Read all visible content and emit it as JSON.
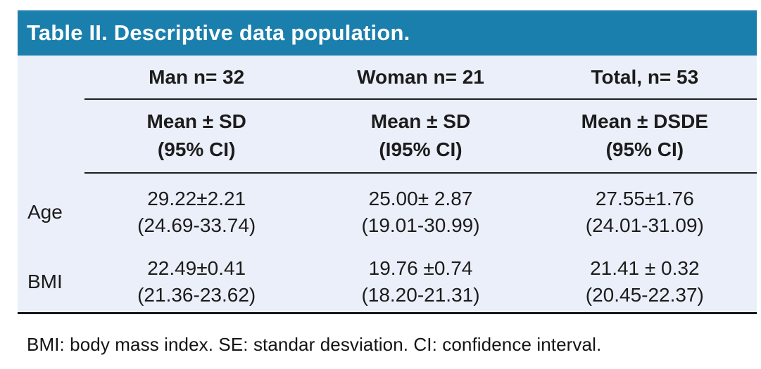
{
  "table": {
    "title": "Table II. Descriptive data population.",
    "columns": [
      {
        "group": "Man n= 32",
        "sub_line1": "Mean ± SD",
        "sub_line2": "(95% CI)"
      },
      {
        "group": "Woman n= 21",
        "sub_line1": "Mean ± SD",
        "sub_line2": "(I95% CI)"
      },
      {
        "group": "Total, n= 53",
        "sub_line1": "Mean ± DSDE",
        "sub_line2": "(95% CI)"
      }
    ],
    "rows": [
      {
        "label": "Age",
        "cells": [
          {
            "value": "29.22±2.21",
            "ci": "(24.69-33.74)"
          },
          {
            "value": "25.00± 2.87",
            "ci": "(19.01-30.99)"
          },
          {
            "value": "27.55±1.76",
            "ci": "(24.01-31.09)"
          }
        ]
      },
      {
        "label": "BMI",
        "cells": [
          {
            "value": "22.49±0.41",
            "ci": "(21.36-23.62)"
          },
          {
            "value": "19.76 ±0.74",
            "ci": "(18.20-21.31)"
          },
          {
            "value": "21.41 ± 0.32",
            "ci": "(20.45-22.37)"
          }
        ]
      }
    ],
    "footnote": "BMI: body mass index. SE: standar desviation. CI: confidence interval."
  },
  "colors": {
    "header_bg": "#1b7fad",
    "header_text": "#ffffff",
    "table_bg": "#ebeff9",
    "rule": "#1b1e22",
    "text": "#1c1c1c"
  }
}
